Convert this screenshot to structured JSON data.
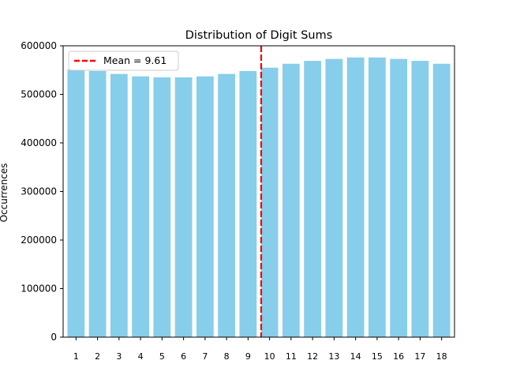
{
  "chart_data": {
    "type": "bar",
    "title": "Distribution of Digit Sums",
    "xlabel": "",
    "ylabel": "Occurrences",
    "categories": [
      "1",
      "2",
      "3",
      "4",
      "5",
      "6",
      "7",
      "8",
      "9",
      "10",
      "11",
      "12",
      "13",
      "14",
      "15",
      "16",
      "17",
      "18"
    ],
    "values": [
      551000,
      548000,
      542000,
      537000,
      535000,
      535000,
      537000,
      542000,
      548000,
      555000,
      563000,
      569000,
      573000,
      576000,
      576000,
      573000,
      569000,
      563000
    ],
    "ylim": [
      0,
      600000
    ],
    "yticks": [
      0,
      100000,
      200000,
      300000,
      400000,
      500000,
      600000
    ],
    "mean_line": {
      "value": 9.61,
      "label": "Mean = 9.61",
      "color": "#ff0000"
    },
    "bar_color": "#87ceeb",
    "grid": false,
    "legend_position": "top-left"
  }
}
